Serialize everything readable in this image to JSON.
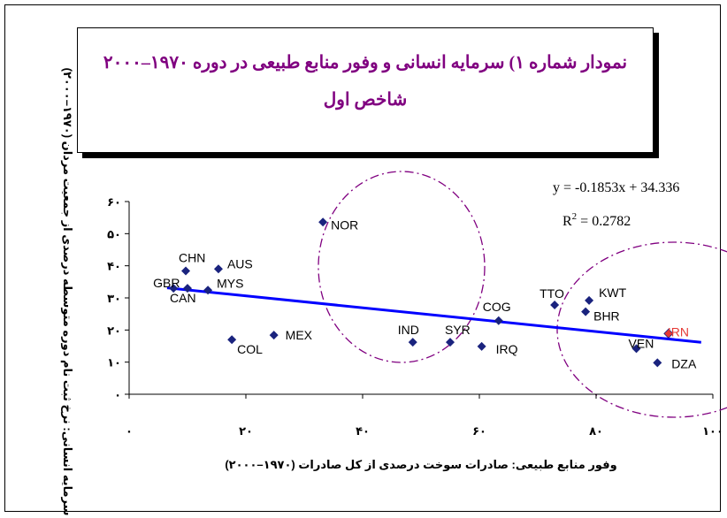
{
  "title": {
    "line1": "نمودار شماره ۱) سرمایه انسانی و وفور منابع طبیعی در دوره ۱۹۷۰–۲۰۰۰",
    "line2": "شاخص اول"
  },
  "colors": {
    "marker": "#1a237e",
    "highlight_marker": "#e53935",
    "highlight_label": "#e53935",
    "trendline": "#0000ff",
    "circle": "#800080",
    "title_text": "#800080"
  },
  "chart_data": {
    "type": "scatter",
    "xlabel": "وفور منابع طبیعی: صادرات سوخت درصدی از کل صادرات (۱۹۷۰–۲۰۰۰)",
    "ylabel": "سرمایه انسانی: نرخ ثبت نام دوره متوسطه درصدی از جمعیت مردان (۱۹۷۰–۲۰۰۰)",
    "xlim": [
      0,
      100
    ],
    "ylim": [
      0,
      60
    ],
    "xticks": [
      0,
      20,
      40,
      60,
      80,
      100
    ],
    "yticks": [
      0,
      10,
      20,
      30,
      40,
      50,
      60
    ],
    "xtick_labels": [
      "۰",
      "۲۰",
      "۴۰",
      "۶۰",
      "۸۰",
      "۱۰۰"
    ],
    "ytick_labels": [
      "۰",
      "۱۰",
      "۲۰",
      "۳۰",
      "۴۰",
      "۵۰",
      "۶۰"
    ],
    "grid": false,
    "points": [
      {
        "label": "CHN",
        "x": 9.7,
        "y": 38.4
      },
      {
        "label": "AUS",
        "x": 15.3,
        "y": 39.0
      },
      {
        "label": "GBR",
        "x": 7.6,
        "y": 33.0
      },
      {
        "label": "CAN",
        "x": 10.0,
        "y": 33.0
      },
      {
        "label": "MYS",
        "x": 13.5,
        "y": 32.4
      },
      {
        "label": "NOR",
        "x": 33.2,
        "y": 53.6
      },
      {
        "label": "COL",
        "x": 17.6,
        "y": 17.0
      },
      {
        "label": "MEX",
        "x": 24.8,
        "y": 18.4
      },
      {
        "label": "IND",
        "x": 48.6,
        "y": 16.2
      },
      {
        "label": "SYR",
        "x": 55.0,
        "y": 16.2
      },
      {
        "label": "IRQ",
        "x": 60.4,
        "y": 14.9
      },
      {
        "label": "COG",
        "x": 63.3,
        "y": 22.9
      },
      {
        "label": "TTO",
        "x": 72.9,
        "y": 27.8
      },
      {
        "label": "KWT",
        "x": 78.8,
        "y": 29.2
      },
      {
        "label": "BHR",
        "x": 78.2,
        "y": 25.7
      },
      {
        "label": "IRN",
        "x": 92.4,
        "y": 18.9,
        "highlight": true
      },
      {
        "label": "VEN",
        "x": 86.9,
        "y": 14.2
      },
      {
        "label": "DZA",
        "x": 90.5,
        "y": 9.8
      }
    ],
    "trendline": {
      "equation": "y = -0.1853x + 34.336",
      "r_squared_prefix": "R",
      "r_squared_exp": "2",
      "r_squared_value": " = 0.2782",
      "slope": -0.1853,
      "intercept": 34.336,
      "x_range": [
        6.5,
        98
      ]
    }
  }
}
